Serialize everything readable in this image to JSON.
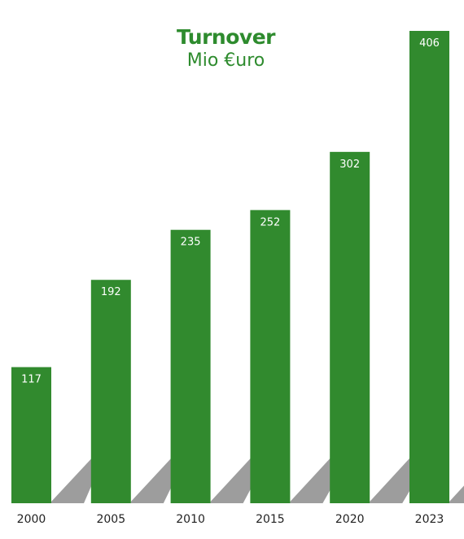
{
  "chart_data": {
    "type": "bar",
    "title": "Turnover",
    "subtitle": "Mio €uro",
    "categories": [
      "2000",
      "2005",
      "2010",
      "2015",
      "2020",
      "2023"
    ],
    "values": [
      117,
      192,
      235,
      252,
      302,
      406
    ],
    "data_labels": [
      "117",
      "192",
      "235",
      "252",
      "302",
      "406"
    ],
    "ylim": [
      0,
      406
    ],
    "grid": false,
    "legend": "none",
    "colors": {
      "bar": "#318a2e",
      "label_text": "#ffffff",
      "title": "#2e8b2e",
      "axis_text": "#222222",
      "shadow": "#8c8c8c"
    }
  }
}
